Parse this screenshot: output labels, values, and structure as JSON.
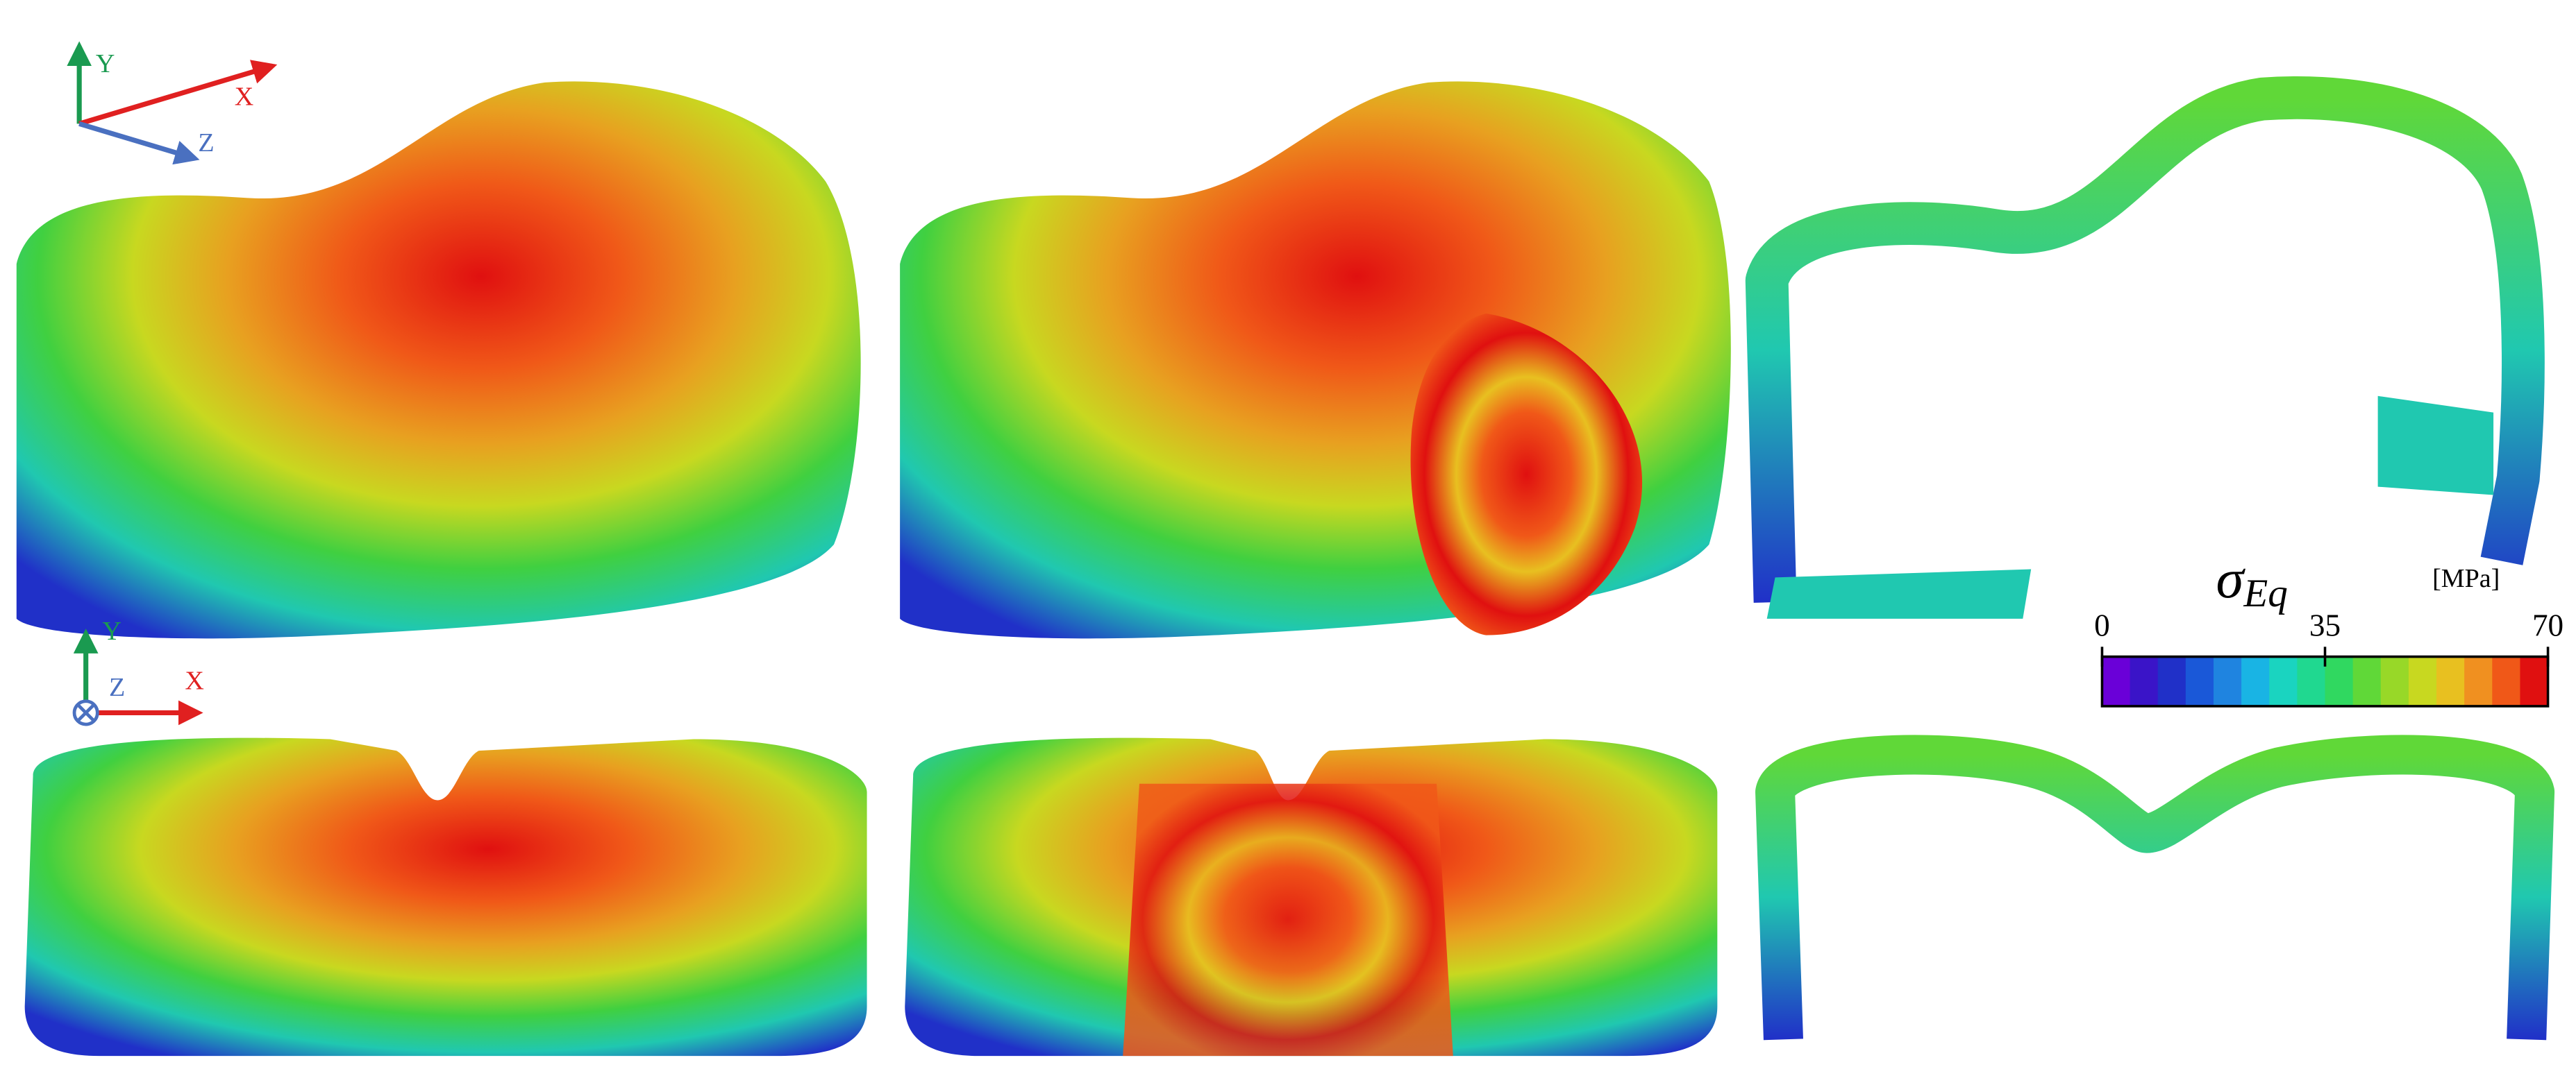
{
  "triads": [
    {
      "y": "Y",
      "x": "X",
      "z": "Z"
    },
    {
      "y": "Y",
      "x": "X",
      "z": "Z"
    }
  ],
  "colorbar": {
    "symbol": "σ",
    "subscript": "Eq",
    "unit": "[MPa]",
    "lim": [
      0,
      70
    ],
    "ticks": [
      0,
      35,
      70
    ],
    "colors": [
      "#6a00d8",
      "#3a14c8",
      "#2030c8",
      "#1a58d8",
      "#1f84e0",
      "#19b4e4",
      "#1ad4c0",
      "#20d890",
      "#30d860",
      "#60d838",
      "#98d828",
      "#c8d820",
      "#e8c020",
      "#f09020",
      "#f05818",
      "#e01010"
    ]
  }
}
